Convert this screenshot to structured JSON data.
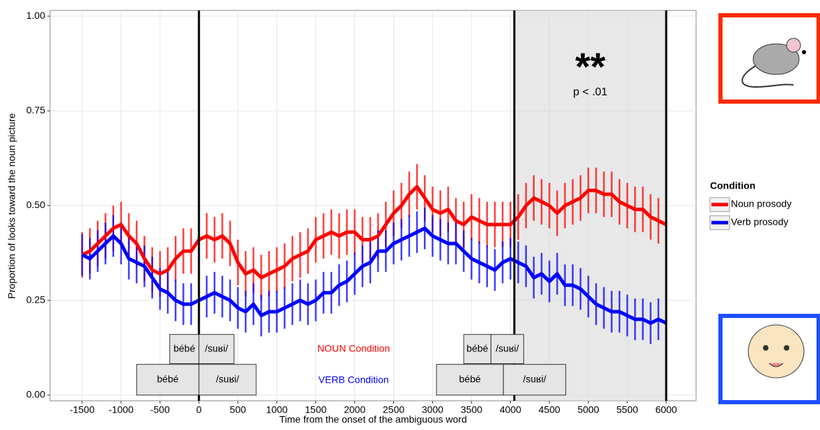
{
  "chart_data": {
    "type": "line",
    "x_label": "Time from the onset of the ambiguous word",
    "y_label": "Proportion of looks toward the noun picture",
    "xlim": [
      -1911,
      6384
    ],
    "ylim": [
      -0.015,
      1.015
    ],
    "xticks": [
      -1500,
      -1000,
      -500,
      0,
      500,
      1000,
      1500,
      2000,
      2500,
      3000,
      3500,
      4000,
      4500,
      5000,
      5500,
      6000
    ],
    "yticks": [
      {
        "value": 0,
        "label": "0.00"
      },
      {
        "value": 0.25,
        "label": "0.25"
      },
      {
        "value": 0.5,
        "label": "0.50"
      },
      {
        "value": 0.75,
        "label": "0.75"
      },
      {
        "value": 1,
        "label": "1.00"
      }
    ],
    "grid": true,
    "legend_title": "Condition",
    "x": [
      -1500,
      -1400,
      -1300,
      -1200,
      -1100,
      -1000,
      -900,
      -800,
      -700,
      -600,
      -500,
      -400,
      -300,
      -200,
      -100,
      0,
      100,
      200,
      300,
      400,
      500,
      600,
      700,
      800,
      900,
      1000,
      1100,
      1200,
      1300,
      1400,
      1500,
      1600,
      1700,
      1800,
      1900,
      2000,
      2100,
      2200,
      2300,
      2400,
      2500,
      2600,
      2700,
      2800,
      2900,
      3000,
      3100,
      3200,
      3300,
      3400,
      3500,
      3600,
      3700,
      3800,
      3900,
      4000,
      4100,
      4200,
      4300,
      4400,
      4500,
      4600,
      4700,
      4800,
      4900,
      5000,
      5100,
      5200,
      5300,
      5400,
      5500,
      5600,
      5700,
      5800,
      5900,
      6000
    ],
    "series": [
      {
        "name": "Noun prosody",
        "color": "#ff0000",
        "error": 0.06,
        "values": [
          0.37,
          0.38,
          0.4,
          0.42,
          0.44,
          0.45,
          0.42,
          0.4,
          0.36,
          0.33,
          0.32,
          0.33,
          0.36,
          0.38,
          0.38,
          0.41,
          0.42,
          0.41,
          0.42,
          0.4,
          0.35,
          0.32,
          0.33,
          0.31,
          0.32,
          0.33,
          0.34,
          0.36,
          0.37,
          0.38,
          0.41,
          0.42,
          0.43,
          0.42,
          0.43,
          0.43,
          0.41,
          0.41,
          0.42,
          0.45,
          0.48,
          0.5,
          0.53,
          0.55,
          0.52,
          0.49,
          0.48,
          0.49,
          0.46,
          0.45,
          0.47,
          0.46,
          0.45,
          0.45,
          0.45,
          0.45,
          0.47,
          0.5,
          0.52,
          0.51,
          0.5,
          0.48,
          0.5,
          0.51,
          0.52,
          0.54,
          0.54,
          0.53,
          0.53,
          0.51,
          0.5,
          0.49,
          0.49,
          0.47,
          0.46,
          0.45
        ]
      },
      {
        "name": "Verb prosody",
        "color": "#0000ff",
        "error": 0.055,
        "values": [
          0.37,
          0.36,
          0.38,
          0.4,
          0.42,
          0.4,
          0.36,
          0.35,
          0.34,
          0.31,
          0.28,
          0.27,
          0.25,
          0.24,
          0.24,
          0.25,
          0.26,
          0.27,
          0.26,
          0.25,
          0.23,
          0.22,
          0.24,
          0.21,
          0.22,
          0.22,
          0.23,
          0.24,
          0.25,
          0.24,
          0.25,
          0.27,
          0.27,
          0.29,
          0.3,
          0.32,
          0.34,
          0.35,
          0.38,
          0.38,
          0.4,
          0.41,
          0.42,
          0.43,
          0.44,
          0.42,
          0.41,
          0.4,
          0.4,
          0.38,
          0.36,
          0.35,
          0.34,
          0.33,
          0.35,
          0.36,
          0.35,
          0.34,
          0.31,
          0.32,
          0.3,
          0.32,
          0.29,
          0.29,
          0.28,
          0.26,
          0.24,
          0.23,
          0.22,
          0.22,
          0.21,
          0.2,
          0.2,
          0.19,
          0.2,
          0.19
        ]
      }
    ],
    "vlines": [
      0,
      4050,
      6000
    ],
    "shade": [
      4050,
      6000
    ],
    "significance": "**",
    "p_value": "p < .01",
    "noun_condition_label": "NOUN Condition",
    "verb_condition_label": "VERB Condition",
    "word_boxes": [
      {
        "label": "bébé",
        "x0": -375,
        "x1": 0,
        "y0": 0.083,
        "y1": 0.16
      },
      {
        "label": "/suʁi/",
        "x0": 0,
        "x1": 450,
        "y0": 0.083,
        "y1": 0.16
      },
      {
        "label": "bébé",
        "x0": -800,
        "x1": 0,
        "y0": 0,
        "y1": 0.081
      },
      {
        "label": "/suʁi/",
        "x0": 0,
        "x1": 735,
        "y0": 0,
        "y1": 0.081
      },
      {
        "label": "bébé",
        "x0": 3400,
        "x1": 3750,
        "y0": 0.083,
        "y1": 0.16
      },
      {
        "label": "/suʁi/",
        "x0": 3750,
        "x1": 4170,
        "y0": 0.083,
        "y1": 0.16
      },
      {
        "label": "bébé",
        "x0": 3050,
        "x1": 3910,
        "y0": 0,
        "y1": 0.081
      },
      {
        "label": "/suʁi/",
        "x0": 3910,
        "x1": 4710,
        "y0": 0,
        "y1": 0.081
      }
    ]
  }
}
